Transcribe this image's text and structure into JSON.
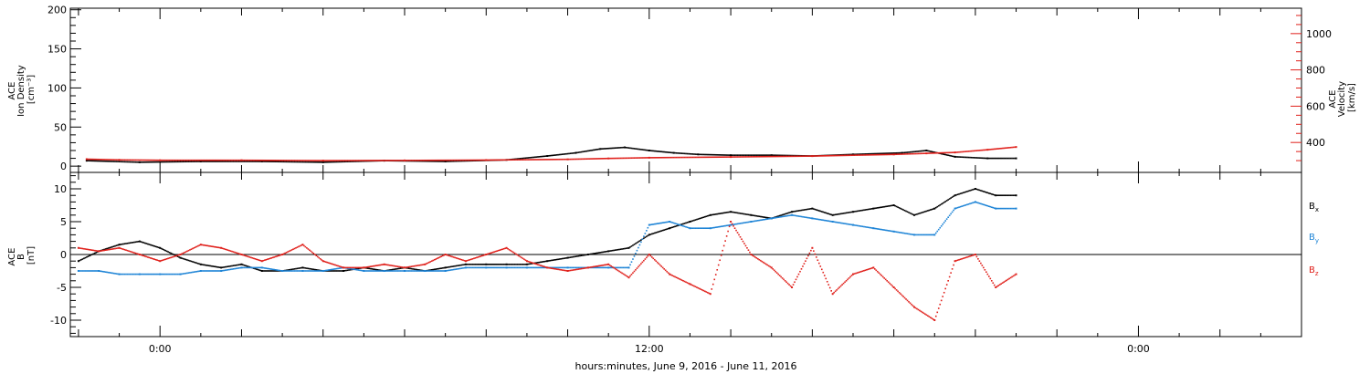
{
  "chart_data": [
    {
      "type": "scatter",
      "panel": "plasma",
      "left_axis": {
        "label_lines": [
          "ACE",
          "Ion Density",
          "[cm⁻³]"
        ],
        "ylim": [
          -8,
          202
        ],
        "ticks": [
          0,
          50,
          100,
          150,
          200
        ],
        "color": "#000000"
      },
      "right_axis": {
        "label_lines": [
          "ACE",
          "Velocity",
          "[km/s]"
        ],
        "ylim": [
          235,
          1140
        ],
        "ticks": [
          400,
          600,
          800,
          1000
        ],
        "color": "#e0201b"
      },
      "series": [
        {
          "axis": "left",
          "color": "#000000",
          "x": [
            -1.8,
            -0.5,
            1,
            2.5,
            4,
            5.5,
            7,
            8.5,
            9.5,
            10.2,
            10.8,
            11.4,
            12,
            12.6,
            13.2,
            14,
            15,
            16,
            17,
            18.2,
            18.8,
            19.5,
            20.3,
            21
          ],
          "y": [
            7,
            5,
            6,
            6,
            5,
            7,
            6,
            8,
            13,
            17,
            22,
            24,
            20,
            17,
            15,
            14,
            14,
            13,
            15,
            17,
            20,
            12,
            10,
            10
          ]
        },
        {
          "axis": "right",
          "color": "#e0201b",
          "x": [
            -1.8,
            -1,
            0,
            2,
            4,
            6,
            8,
            10,
            11,
            12,
            14,
            16,
            18,
            18.8,
            19.5,
            20.3,
            21
          ],
          "y": [
            308,
            304,
            302,
            302,
            300,
            301,
            303,
            307,
            312,
            316,
            320,
            325,
            334,
            340,
            345,
            360,
            375
          ]
        }
      ]
    },
    {
      "type": "scatter",
      "panel": "magnetic-field",
      "axis": {
        "label_lines": [
          "ACE",
          "B",
          "[nT]"
        ],
        "ylim": [
          -12.5,
          12.5
        ],
        "ticks": [
          -10,
          -5,
          0,
          5,
          10
        ]
      },
      "zero_line": true,
      "series": [
        {
          "name": "Bx",
          "color": "#000000",
          "x": [
            -2,
            -1.5,
            -1,
            -0.5,
            0,
            0.5,
            1,
            1.5,
            2,
            2.5,
            3,
            3.5,
            4,
            4.5,
            5,
            5.5,
            6,
            6.5,
            7,
            7.5,
            8,
            8.5,
            9,
            9.5,
            10,
            10.5,
            11,
            11.5,
            12,
            12.5,
            13,
            13.5,
            14,
            14.5,
            15,
            15.5,
            16,
            16.5,
            17,
            17.5,
            18,
            18.5,
            19,
            19.5,
            20,
            20.5,
            21
          ],
          "y": [
            -1,
            0.5,
            1.5,
            2,
            1,
            -0.5,
            -1.5,
            -2,
            -1.5,
            -2.5,
            -2.5,
            -2,
            -2.5,
            -2.5,
            -2,
            -2.5,
            -2,
            -2.5,
            -2,
            -1.5,
            -1.5,
            -1.5,
            -1.5,
            -1,
            -0.5,
            0,
            0.5,
            1,
            3,
            4,
            5,
            6,
            6.5,
            6,
            5.5,
            6.5,
            7,
            6,
            6.5,
            7,
            7.5,
            6,
            7,
            9,
            10,
            9,
            9
          ]
        },
        {
          "name": "By",
          "color": "#1e84d6",
          "x": [
            -2,
            -1.5,
            -1,
            -0.5,
            0,
            0.5,
            1,
            1.5,
            2,
            2.5,
            3,
            3.5,
            4,
            4.5,
            5,
            5.5,
            6,
            6.5,
            7,
            7.5,
            8,
            8.5,
            9,
            9.5,
            10,
            10.5,
            11,
            11.5,
            12,
            12.5,
            13,
            13.5,
            14,
            14.5,
            15,
            15.5,
            16,
            16.5,
            17,
            17.5,
            18,
            18.5,
            19,
            19.5,
            20,
            20.5,
            21
          ],
          "y": [
            -2.5,
            -2.5,
            -3,
            -3,
            -3,
            -3,
            -2.5,
            -2.5,
            -2,
            -2,
            -2.5,
            -2.5,
            -2.5,
            -2,
            -2.5,
            -2.5,
            -2.5,
            -2.5,
            -2.5,
            -2,
            -2,
            -2,
            -2,
            -2,
            -2,
            -2,
            -2,
            -2,
            4.5,
            5,
            4,
            4,
            4.5,
            5,
            5.5,
            6,
            5.5,
            5,
            4.5,
            4,
            3.5,
            3,
            3,
            7,
            8,
            7,
            7
          ]
        },
        {
          "name": "Bz",
          "color": "#e0201b",
          "x": [
            -2,
            -1.5,
            -1,
            -0.5,
            0,
            0.5,
            1,
            1.5,
            2,
            2.5,
            3,
            3.5,
            4,
            4.5,
            5,
            5.5,
            6,
            6.5,
            7,
            7.5,
            8,
            8.5,
            9,
            9.5,
            10,
            10.5,
            11,
            11.5,
            12,
            12.5,
            13,
            13.5,
            14,
            14.5,
            15,
            15.5,
            16,
            16.5,
            17,
            17.5,
            18,
            18.5,
            19,
            19.5,
            20,
            20.5,
            21
          ],
          "y": [
            1,
            0.5,
            1,
            0,
            -1,
            0,
            1.5,
            1,
            0,
            -1,
            0,
            1.5,
            -1,
            -2,
            -2,
            -1.5,
            -2,
            -1.5,
            0,
            -1,
            0,
            1,
            -1,
            -2,
            -2.5,
            -2,
            -1.5,
            -3.5,
            0,
            -3,
            -4.5,
            -6,
            5,
            0,
            -2,
            -5,
            1,
            -6,
            -3,
            -2,
            -5,
            -8,
            -10,
            -1,
            0,
            -5,
            -3
          ]
        }
      ]
    }
  ],
  "x_axis": {
    "label": "hours:minutes, June  9, 2016 - June 11, 2016",
    "range_hours": [
      -2.2,
      28
    ],
    "ticks": [
      {
        "x": 0,
        "label": "0:00"
      },
      {
        "x": 12,
        "label": "12:00"
      },
      {
        "x": 24,
        "label": "0:00"
      }
    ]
  },
  "legend": {
    "placement": "right",
    "entries": [
      {
        "name": "B",
        "sub": "x",
        "color": "#000000"
      },
      {
        "name": "B",
        "sub": "y",
        "color": "#1e84d6"
      },
      {
        "name": "B",
        "sub": "z",
        "color": "#e0201b"
      }
    ]
  }
}
